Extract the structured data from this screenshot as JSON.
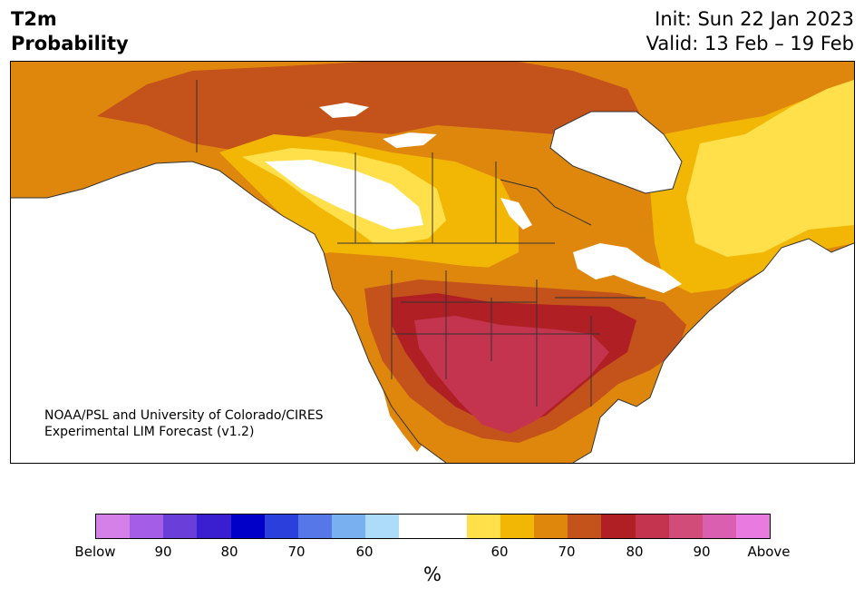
{
  "header": {
    "title_line1": "T2m",
    "title_line2": "Probability",
    "init": "Init: Sun 22 Jan 2023",
    "valid": "Valid: 13 Feb – 19 Feb"
  },
  "credit": {
    "line1": "NOAA/PSL and University of Colorado/CIRES",
    "line2": "Experimental LIM Forecast (v1.2)"
  },
  "colorbar": {
    "colors": [
      "#d580e8",
      "#a45de6",
      "#6a3fd9",
      "#3a1fd1",
      "#0000c8",
      "#2a3fdc",
      "#5577e8",
      "#78b0f0",
      "#acdcf9",
      "#ffffff",
      "#ffffff",
      "#ffe04a",
      "#f2b705",
      "#df870d",
      "#c4521b",
      "#b01f24",
      "#c4344f",
      "#d24c7a",
      "#da5fb0",
      "#e87ae0"
    ],
    "tick_labels": [
      "Below",
      "90",
      "80",
      "70",
      "60",
      "60",
      "70",
      "80",
      "90",
      "Above"
    ],
    "unit": "%"
  },
  "map": {
    "region": "North America",
    "category_colors": {
      "above_50": "#ffe04a",
      "above_60": "#f2b705",
      "above_65": "#df870d",
      "above_70": "#c4521b",
      "above_75": "#b01f24",
      "above_80": "#c4344f",
      "below_50": "#ffe04a",
      "ocean": "#ffffff",
      "boundary": "#333333"
    }
  }
}
